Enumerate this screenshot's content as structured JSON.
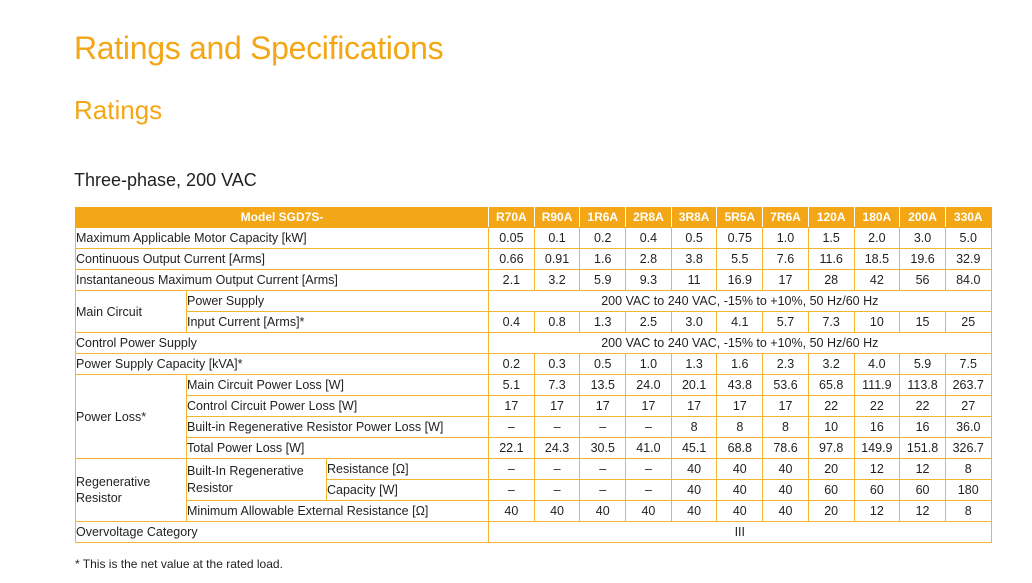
{
  "title": "Ratings and Specifications",
  "subtitle": "Ratings",
  "section_heading": "Three-phase, 200 VAC",
  "table": {
    "model_header": "Model SGD7S-",
    "models": [
      "R70A",
      "R90A",
      "1R6A",
      "2R8A",
      "3R8A",
      "5R5A",
      "7R6A",
      "120A",
      "180A",
      "200A",
      "330A"
    ],
    "max_motor_capacity": {
      "label": "Maximum Applicable Motor Capacity [kW]",
      "values": [
        "0.05",
        "0.1",
        "0.2",
        "0.4",
        "0.5",
        "0.75",
        "1.0",
        "1.5",
        "2.0",
        "3.0",
        "5.0"
      ]
    },
    "cont_output_current": {
      "label": "Continuous Output Current [Arms]",
      "values": [
        "0.66",
        "0.91",
        "1.6",
        "2.8",
        "3.8",
        "5.5",
        "7.6",
        "11.6",
        "18.5",
        "19.6",
        "32.9"
      ]
    },
    "inst_max_current": {
      "label": "Instantaneous Maximum Output Current [Arms]",
      "values": [
        "2.1",
        "3.2",
        "5.9",
        "9.3",
        "11",
        "16.9",
        "17",
        "28",
        "42",
        "56",
        "84.0"
      ]
    },
    "main_circuit": {
      "label": "Main Circuit",
      "power_supply_label": "Power Supply",
      "power_supply_value": "200 VAC to 240 VAC, -15% to +10%, 50 Hz/60 Hz",
      "input_current_label": "Input Current [Arms]*",
      "input_current_values": [
        "0.4",
        "0.8",
        "1.3",
        "2.5",
        "3.0",
        "4.1",
        "5.7",
        "7.3",
        "10",
        "15",
        "25"
      ]
    },
    "control_power_supply": {
      "label": "Control Power Supply",
      "value": "200 VAC to 240 VAC, -15% to +10%, 50 Hz/60 Hz"
    },
    "power_supply_capacity": {
      "label": "Power Supply Capacity [kVA]*",
      "values": [
        "0.2",
        "0.3",
        "0.5",
        "1.0",
        "1.3",
        "1.6",
        "2.3",
        "3.2",
        "4.0",
        "5.9",
        "7.5"
      ]
    },
    "power_loss": {
      "label": "Power Loss*",
      "rows": [
        {
          "label": "Main Circuit Power Loss [W]",
          "values": [
            "5.1",
            "7.3",
            "13.5",
            "24.0",
            "20.1",
            "43.8",
            "53.6",
            "65.8",
            "111.9",
            "113.8",
            "263.7"
          ]
        },
        {
          "label": "Control Circuit Power Loss [W]",
          "values": [
            "17",
            "17",
            "17",
            "17",
            "17",
            "17",
            "17",
            "22",
            "22",
            "22",
            "27"
          ]
        },
        {
          "label": "Built-in Regenerative Resistor Power Loss [W]",
          "values": [
            "–",
            "–",
            "–",
            "–",
            "8",
            "8",
            "8",
            "10",
            "16",
            "16",
            "36.0"
          ]
        },
        {
          "label": "Total Power Loss [W]",
          "values": [
            "22.1",
            "24.3",
            "30.5",
            "41.0",
            "45.1",
            "68.8",
            "78.6",
            "97.8",
            "149.9",
            "151.8",
            "326.7"
          ]
        }
      ]
    },
    "regen": {
      "label_line1": "Regenerative",
      "label_line2": "Resistor",
      "builtin_line1": "Built-In Regenerative",
      "builtin_line2": "Resistor",
      "resistance_label": "Resistance [Ω]",
      "resistance_values": [
        "–",
        "–",
        "–",
        "–",
        "40",
        "40",
        "40",
        "20",
        "12",
        "12",
        "8"
      ],
      "capacity_label": "Capacity [W]",
      "capacity_values": [
        "–",
        "–",
        "–",
        "–",
        "40",
        "40",
        "40",
        "60",
        "60",
        "60",
        "180"
      ],
      "min_ext_label": "Minimum Allowable External Resistance [Ω]",
      "min_ext_values": [
        "40",
        "40",
        "40",
        "40",
        "40",
        "40",
        "40",
        "20",
        "12",
        "12",
        "8"
      ]
    },
    "overvoltage": {
      "label": "Overvoltage Category",
      "value": "III"
    }
  },
  "footnote": "* This is the net value at the rated load."
}
